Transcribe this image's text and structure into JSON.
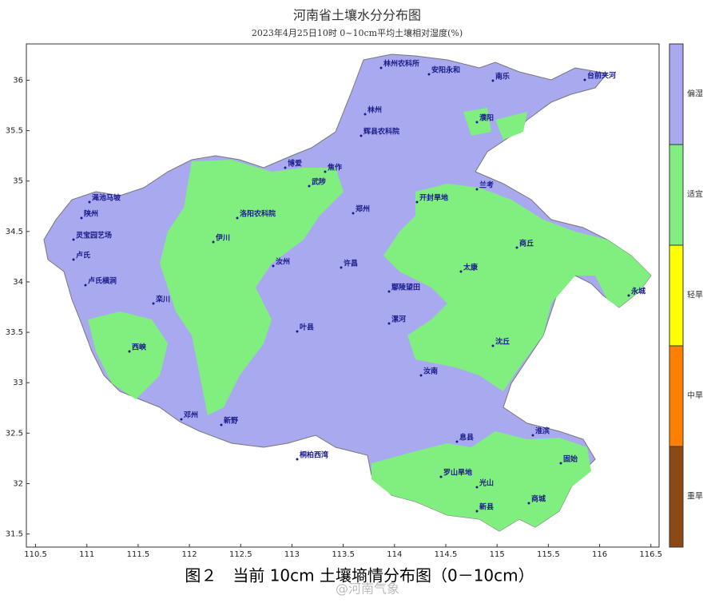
{
  "map": {
    "title": "河南省土壤水分分布图",
    "subtitle": "2023年4月25日10时 0~10cm平均土壤相对湿度(%)",
    "xlim": [
      110.41,
      116.58
    ],
    "ylim": [
      31.37,
      36.36
    ],
    "xticks": [
      110.5,
      111,
      111.5,
      112,
      112.5,
      113,
      113.5,
      114,
      114.5,
      115,
      115.5,
      116,
      116.5
    ],
    "yticks": [
      31.5,
      32,
      32.5,
      33,
      33.5,
      34,
      34.5,
      35,
      35.5,
      36
    ],
    "legend": [
      {
        "label": "偏湿",
        "color": "#a9a9ef"
      },
      {
        "label": "适宜",
        "color": "#80ef80"
      },
      {
        "label": "轻旱",
        "color": "#ffff00"
      },
      {
        "label": "中旱",
        "color": "#ff8000"
      },
      {
        "label": "重旱",
        "color": "#8b4a14"
      }
    ],
    "stations": [
      "林州农科所",
      "安阳永和",
      "台前夹河",
      "南乐",
      "林州",
      "濮阳",
      "辉县农科院",
      "博爱",
      "焦作",
      "武陟",
      "郑州",
      "开封旱地",
      "兰考",
      "渑池马坡",
      "陕州",
      "洛阳农科院",
      "灵宝园艺场",
      "卢氏",
      "卢氏横涧",
      "伊川",
      "汝州",
      "许昌",
      "鄢陵望田",
      "太康",
      "商丘",
      "永城",
      "栾川",
      "叶县",
      "漯河",
      "西峡",
      "邓州",
      "新野",
      "桐柏西湾",
      "汝南",
      "息县",
      "罗山旱地",
      "光山",
      "商城",
      "新县",
      "固始",
      "淮滨",
      "沈丘"
    ],
    "caption": "图２　当前 10cm 土壤墒情分布图（0－10cm）",
    "watermark": "@河南气象"
  }
}
